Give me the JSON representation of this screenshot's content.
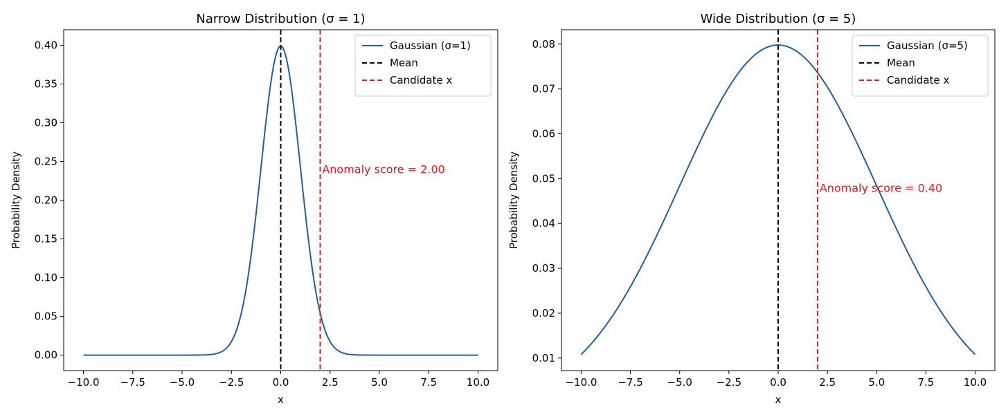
{
  "chart_data": [
    {
      "type": "line",
      "title": "Narrow Distribution (σ = 1)",
      "xlabel": "x",
      "ylabel": "Probability Density",
      "xlim": [
        -11,
        11
      ],
      "ylim": [
        -0.02,
        0.42
      ],
      "sigma": 1,
      "mean": 0,
      "candidate_x": 2,
      "x_range": [
        -10,
        10
      ],
      "xticks": [
        -10,
        -7.5,
        -5,
        -2.5,
        0,
        2.5,
        5,
        7.5,
        10
      ],
      "xtick_labels": [
        "−10.0",
        "−7.5",
        "−5.0",
        "−2.5",
        "0.0",
        "2.5",
        "5.0",
        "7.5",
        "10.0"
      ],
      "yticks": [
        0,
        0.05,
        0.1,
        0.15,
        0.2,
        0.25,
        0.3,
        0.35,
        0.4
      ],
      "ytick_labels": [
        "0.00",
        "0.05",
        "0.10",
        "0.15",
        "0.20",
        "0.25",
        "0.30",
        "0.35",
        "0.40"
      ],
      "series": [
        {
          "name": "Gaussian (σ=1)",
          "kind": "curve",
          "color": "#1f5fa0",
          "style": "solid"
        },
        {
          "name": "Mean",
          "kind": "vline",
          "x": 0,
          "color": "#000000",
          "style": "dashed"
        },
        {
          "name": "Candidate x",
          "kind": "vline",
          "x": 2,
          "color": "#e41a1c",
          "style": "dashed"
        }
      ],
      "annotation": {
        "text": "Anomaly score = 2.00",
        "x": 2.1,
        "y": 0.24,
        "color": "#e41a1c"
      },
      "legend": "top-right",
      "grid": false
    },
    {
      "type": "line",
      "title": "Wide Distribution (σ = 5)",
      "xlabel": "x",
      "ylabel": "Probability Density",
      "xlim": [
        -11,
        11
      ],
      "ylim": [
        0.0072,
        0.0832
      ],
      "sigma": 5,
      "mean": 0,
      "candidate_x": 2,
      "x_range": [
        -10,
        10
      ],
      "xticks": [
        -10,
        -7.5,
        -5,
        -2.5,
        0,
        2.5,
        5,
        7.5,
        10
      ],
      "xtick_labels": [
        "−10.0",
        "−7.5",
        "−5.0",
        "−2.5",
        "0.0",
        "2.5",
        "5.0",
        "7.5",
        "10.0"
      ],
      "yticks": [
        0.01,
        0.02,
        0.03,
        0.04,
        0.05,
        0.06,
        0.07,
        0.08
      ],
      "ytick_labels": [
        "0.01",
        "0.02",
        "0.03",
        "0.04",
        "0.05",
        "0.06",
        "0.07",
        "0.08"
      ],
      "series": [
        {
          "name": "Gaussian (σ=5)",
          "kind": "curve",
          "color": "#1f5fa0",
          "style": "solid"
        },
        {
          "name": "Mean",
          "kind": "vline",
          "x": 0,
          "color": "#000000",
          "style": "dashed"
        },
        {
          "name": "Candidate x",
          "kind": "vline",
          "x": 2,
          "color": "#e41a1c",
          "style": "dashed"
        }
      ],
      "annotation": {
        "text": "Anomaly score = 0.40",
        "x": 2.1,
        "y": 0.048,
        "color": "#e41a1c"
      },
      "legend": "top-right",
      "grid": false
    }
  ]
}
